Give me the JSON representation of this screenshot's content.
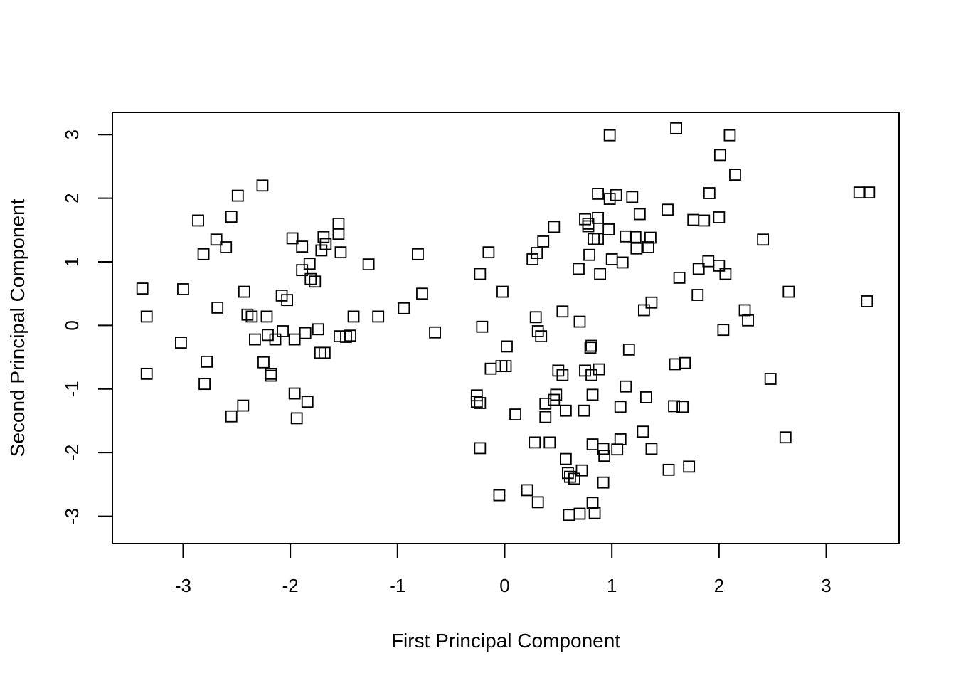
{
  "chart_data": {
    "type": "scatter",
    "title": "",
    "xlabel": "First Principal Component",
    "ylabel": "Second Principal Component",
    "xlim": [
      -3.66,
      3.68
    ],
    "ylim": [
      -3.43,
      3.35
    ],
    "xticks": [
      -3,
      -2,
      -1,
      0,
      1,
      2,
      3
    ],
    "yticks": [
      -3,
      -2,
      -1,
      0,
      1,
      2,
      3
    ],
    "xtick_labels": [
      "-3",
      "-2",
      "-1",
      "0",
      "1",
      "2",
      "3"
    ],
    "ytick_labels": [
      "-3",
      "-2",
      "-1",
      "0",
      "1",
      "2",
      "3"
    ],
    "marker": "open-square",
    "grid": false,
    "legend": false,
    "points": [
      [
        -3.38,
        0.58
      ],
      [
        -3.34,
        0.14
      ],
      [
        -3.34,
        -0.76
      ],
      [
        -3.02,
        -0.27
      ],
      [
        -3.0,
        0.57
      ],
      [
        -2.86,
        1.65
      ],
      [
        -2.81,
        1.12
      ],
      [
        -2.8,
        -0.92
      ],
      [
        -2.78,
        -0.57
      ],
      [
        -2.69,
        1.35
      ],
      [
        -2.68,
        0.28
      ],
      [
        -2.6,
        1.23
      ],
      [
        -2.55,
        1.71
      ],
      [
        -2.55,
        -1.43
      ],
      [
        -2.49,
        2.04
      ],
      [
        -2.44,
        -1.26
      ],
      [
        -2.43,
        0.53
      ],
      [
        -2.4,
        0.17
      ],
      [
        -2.36,
        0.14
      ],
      [
        -2.33,
        -0.22
      ],
      [
        -2.26,
        2.2
      ],
      [
        -2.25,
        -0.58
      ],
      [
        -2.22,
        0.14
      ],
      [
        -2.21,
        -0.15
      ],
      [
        -2.18,
        -0.79
      ],
      [
        -2.18,
        -0.76
      ],
      [
        -2.14,
        -0.22
      ],
      [
        -2.08,
        0.47
      ],
      [
        -2.07,
        -0.09
      ],
      [
        -2.03,
        0.4
      ],
      [
        -1.98,
        1.37
      ],
      [
        -1.96,
        -1.07
      ],
      [
        -1.96,
        -0.22
      ],
      [
        -1.94,
        -1.46
      ],
      [
        -1.89,
        1.24
      ],
      [
        -1.89,
        0.87
      ],
      [
        -1.86,
        -0.12
      ],
      [
        -1.84,
        -1.2
      ],
      [
        -1.82,
        0.97
      ],
      [
        -1.81,
        0.73
      ],
      [
        -1.77,
        0.69
      ],
      [
        -1.74,
        -0.06
      ],
      [
        -1.72,
        -0.43
      ],
      [
        -1.71,
        1.18
      ],
      [
        -1.69,
        1.39
      ],
      [
        -1.68,
        -0.43
      ],
      [
        -1.67,
        1.28
      ],
      [
        -1.55,
        1.44
      ],
      [
        -1.55,
        1.6
      ],
      [
        -1.54,
        -0.17
      ],
      [
        -1.53,
        1.15
      ],
      [
        -1.48,
        -0.18
      ],
      [
        -1.44,
        -0.16
      ],
      [
        -1.41,
        0.14
      ],
      [
        -1.27,
        0.96
      ],
      [
        -1.18,
        0.14
      ],
      [
        -0.94,
        0.27
      ],
      [
        -0.81,
        1.12
      ],
      [
        -0.77,
        0.5
      ],
      [
        -0.65,
        -0.11
      ],
      [
        -0.26,
        -1.1
      ],
      [
        -0.26,
        -1.2
      ],
      [
        -0.23,
        -1.93
      ],
      [
        -0.23,
        -1.22
      ],
      [
        -0.23,
        0.81
      ],
      [
        -0.21,
        -0.02
      ],
      [
        -0.15,
        1.15
      ],
      [
        -0.13,
        -0.68
      ],
      [
        -0.05,
        -2.67
      ],
      [
        -0.03,
        -0.64
      ],
      [
        -0.02,
        0.53
      ],
      [
        0.01,
        -0.64
      ],
      [
        0.02,
        -0.33
      ],
      [
        0.1,
        -1.4
      ],
      [
        0.21,
        -2.59
      ],
      [
        0.26,
        1.04
      ],
      [
        0.28,
        -1.84
      ],
      [
        0.29,
        0.13
      ],
      [
        0.3,
        1.14
      ],
      [
        0.31,
        -0.09
      ],
      [
        0.31,
        -2.78
      ],
      [
        0.34,
        -0.17
      ],
      [
        0.36,
        1.32
      ],
      [
        0.38,
        -1.23
      ],
      [
        0.38,
        -1.44
      ],
      [
        0.42,
        -1.84
      ],
      [
        0.46,
        -1.17
      ],
      [
        0.46,
        1.55
      ],
      [
        0.48,
        -1.09
      ],
      [
        0.5,
        -0.71
      ],
      [
        0.54,
        -0.78
      ],
      [
        0.54,
        0.22
      ],
      [
        0.57,
        -1.34
      ],
      [
        0.57,
        -2.1
      ],
      [
        0.59,
        -2.32
      ],
      [
        0.6,
        -2.98
      ],
      [
        0.61,
        -2.38
      ],
      [
        0.65,
        -2.41
      ],
      [
        0.69,
        0.89
      ],
      [
        0.7,
        -2.96
      ],
      [
        0.7,
        0.06
      ],
      [
        0.72,
        -2.28
      ],
      [
        0.74,
        -1.34
      ],
      [
        0.75,
        1.67
      ],
      [
        0.75,
        -0.71
      ],
      [
        0.78,
        1.6
      ],
      [
        0.78,
        1.56
      ],
      [
        0.79,
        1.11
      ],
      [
        0.8,
        -0.35
      ],
      [
        0.81,
        -0.32
      ],
      [
        0.81,
        -0.78
      ],
      [
        0.82,
        -1.09
      ],
      [
        0.82,
        -2.79
      ],
      [
        0.82,
        -1.87
      ],
      [
        0.83,
        1.36
      ],
      [
        0.84,
        -2.95
      ],
      [
        0.87,
        1.36
      ],
      [
        0.87,
        2.07
      ],
      [
        0.87,
        1.69
      ],
      [
        0.88,
        -0.69
      ],
      [
        0.89,
        0.81
      ],
      [
        0.92,
        -2.47
      ],
      [
        0.92,
        -1.94
      ],
      [
        0.93,
        -2.05
      ],
      [
        0.97,
        1.51
      ],
      [
        0.98,
        2.99
      ],
      [
        0.98,
        1.99
      ],
      [
        1.0,
        1.04
      ],
      [
        1.04,
        2.05
      ],
      [
        1.05,
        -1.95
      ],
      [
        1.08,
        -1.79
      ],
      [
        1.08,
        -1.28
      ],
      [
        1.1,
        0.99
      ],
      [
        1.13,
        -0.96
      ],
      [
        1.13,
        1.4
      ],
      [
        1.16,
        -0.38
      ],
      [
        1.19,
        2.02
      ],
      [
        1.22,
        1.39
      ],
      [
        1.23,
        1.21
      ],
      [
        1.26,
        1.75
      ],
      [
        1.29,
        -1.67
      ],
      [
        1.3,
        0.24
      ],
      [
        1.32,
        -1.13
      ],
      [
        1.34,
        1.23
      ],
      [
        1.36,
        1.38
      ],
      [
        1.37,
        -1.94
      ],
      [
        1.37,
        0.36
      ],
      [
        1.52,
        1.82
      ],
      [
        1.53,
        -2.27
      ],
      [
        1.58,
        -1.27
      ],
      [
        1.59,
        -0.61
      ],
      [
        1.6,
        3.1
      ],
      [
        1.63,
        0.75
      ],
      [
        1.66,
        -1.28
      ],
      [
        1.68,
        -0.59
      ],
      [
        1.72,
        -2.22
      ],
      [
        1.76,
        1.66
      ],
      [
        1.8,
        0.48
      ],
      [
        1.81,
        0.89
      ],
      [
        1.86,
        1.65
      ],
      [
        1.9,
        1.01
      ],
      [
        1.91,
        2.08
      ],
      [
        2.0,
        1.7
      ],
      [
        2.0,
        0.94
      ],
      [
        2.01,
        2.68
      ],
      [
        2.04,
        -0.07
      ],
      [
        2.06,
        0.81
      ],
      [
        2.1,
        2.99
      ],
      [
        2.15,
        2.37
      ],
      [
        2.24,
        0.24
      ],
      [
        2.27,
        0.08
      ],
      [
        2.41,
        1.35
      ],
      [
        2.48,
        -0.84
      ],
      [
        2.62,
        -1.76
      ],
      [
        2.65,
        0.53
      ],
      [
        3.31,
        2.09
      ],
      [
        3.38,
        0.38
      ],
      [
        3.4,
        2.09
      ]
    ]
  }
}
